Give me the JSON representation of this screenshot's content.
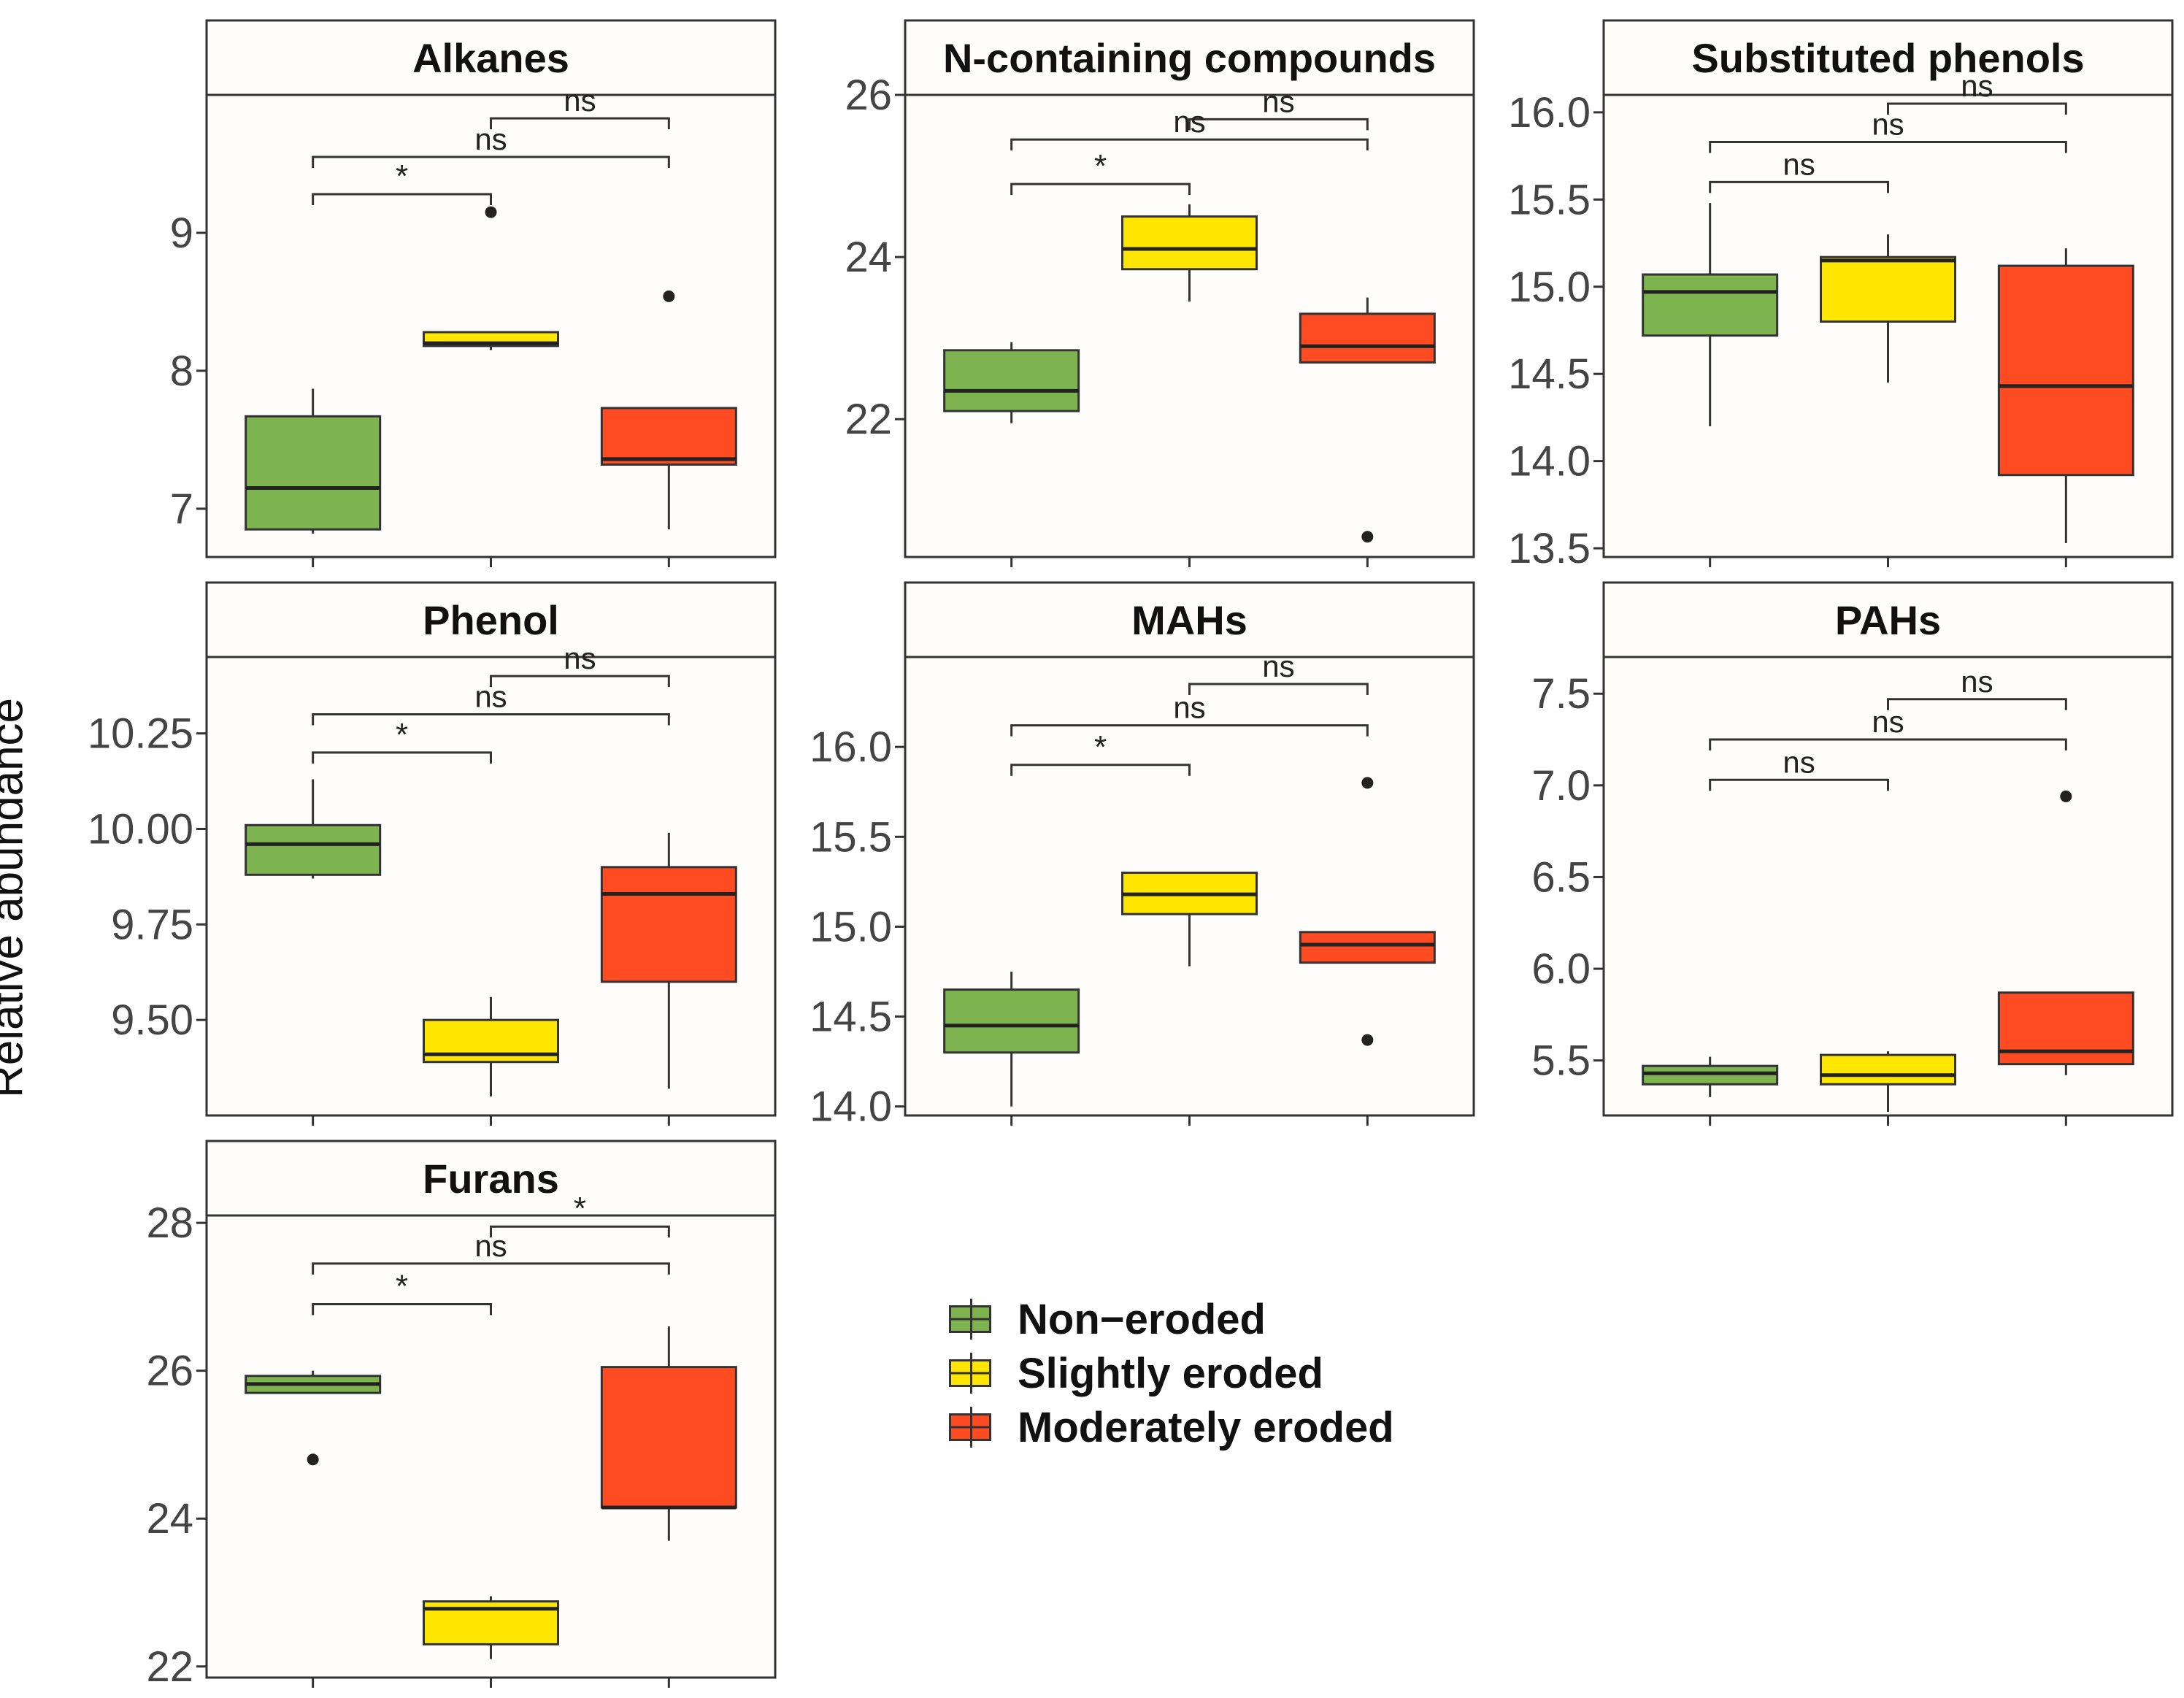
{
  "y_axis_label": "Relative abundance",
  "colors": {
    "non_eroded": "#7DB450",
    "slightly_eroded": "#FFE600",
    "moderately_eroded": "#FF4B21"
  },
  "legend": {
    "items": [
      {
        "label": "Non−eroded",
        "color": "#7DB450"
      },
      {
        "label": "Slightly eroded",
        "color": "#FFE600"
      },
      {
        "label": "Moderately eroded",
        "color": "#FF4B21"
      }
    ]
  },
  "chart_data": [
    {
      "type": "boxplot",
      "title": "Alkanes",
      "ylim": [
        6.65,
        10.0
      ],
      "yticks": [
        7,
        8,
        9
      ],
      "ytick_labels": [
        "7",
        "8",
        "9"
      ],
      "boxes": [
        {
          "group": "Non-eroded",
          "min": 6.82,
          "q1": 6.85,
          "median": 7.15,
          "q3": 7.67,
          "max": 7.87,
          "outliers": []
        },
        {
          "group": "Slightly eroded",
          "min": 8.15,
          "q1": 8.18,
          "median": 8.2,
          "q3": 8.28,
          "max": 8.28,
          "outliers": [
            9.15
          ]
        },
        {
          "group": "Moderately eroded",
          "min": 6.85,
          "q1": 7.32,
          "median": 7.36,
          "q3": 7.73,
          "max": 7.73,
          "outliers": [
            8.54
          ]
        }
      ],
      "comparisons": [
        {
          "from": 2,
          "to": 3,
          "y": 9.83,
          "label": "ns"
        },
        {
          "from": 1,
          "to": 3,
          "y": 9.55,
          "label": "ns"
        },
        {
          "from": 1,
          "to": 2,
          "y": 9.28,
          "label": "*"
        }
      ]
    },
    {
      "type": "boxplot",
      "title": "N-containing compounds",
      "ylim": [
        20.3,
        26.0
      ],
      "yticks": [
        22,
        24,
        26
      ],
      "ytick_labels": [
        "22",
        "24",
        "26"
      ],
      "boxes": [
        {
          "group": "Non-eroded",
          "min": 21.95,
          "q1": 22.1,
          "median": 22.35,
          "q3": 22.85,
          "max": 22.95,
          "outliers": []
        },
        {
          "group": "Slightly eroded",
          "min": 23.45,
          "q1": 23.85,
          "median": 24.1,
          "q3": 24.5,
          "max": 24.65,
          "outliers": []
        },
        {
          "group": "Moderately eroded",
          "min": 22.7,
          "q1": 22.7,
          "median": 22.9,
          "q3": 23.3,
          "max": 23.5,
          "outliers": [
            20.55
          ]
        }
      ],
      "comparisons": [
        {
          "from": 2,
          "to": 3,
          "y": 25.7,
          "label": "ns"
        },
        {
          "from": 1,
          "to": 3,
          "y": 25.45,
          "label": "ns"
        },
        {
          "from": 1,
          "to": 2,
          "y": 24.9,
          "label": "*"
        }
      ]
    },
    {
      "type": "boxplot",
      "title": "Substituted phenols",
      "ylim": [
        13.45,
        16.1
      ],
      "yticks": [
        13.5,
        14.0,
        14.5,
        15.0,
        15.5,
        16.0
      ],
      "ytick_labels": [
        "13.5",
        "14.0",
        "14.5",
        "15.0",
        "15.5",
        "16.0"
      ],
      "boxes": [
        {
          "group": "Non-eroded",
          "min": 14.2,
          "q1": 14.72,
          "median": 14.97,
          "q3": 15.07,
          "max": 15.48,
          "outliers": []
        },
        {
          "group": "Slightly eroded",
          "min": 14.45,
          "q1": 14.8,
          "median": 15.15,
          "q3": 15.17,
          "max": 15.3,
          "outliers": []
        },
        {
          "group": "Moderately eroded",
          "min": 13.53,
          "q1": 13.92,
          "median": 14.43,
          "q3": 15.12,
          "max": 15.22,
          "outliers": []
        }
      ],
      "comparisons": [
        {
          "from": 2,
          "to": 3,
          "y": 16.05,
          "label": "ns"
        },
        {
          "from": 1,
          "to": 3,
          "y": 15.83,
          "label": "ns"
        },
        {
          "from": 1,
          "to": 2,
          "y": 15.6,
          "label": "ns"
        }
      ]
    },
    {
      "type": "boxplot",
      "title": "Phenol",
      "ylim": [
        9.25,
        10.45
      ],
      "yticks": [
        9.5,
        9.75,
        10.0,
        10.25
      ],
      "ytick_labels": [
        "9.50",
        "9.75",
        "10.00",
        "10.25"
      ],
      "boxes": [
        {
          "group": "Non-eroded",
          "min": 9.87,
          "q1": 9.88,
          "median": 9.96,
          "q3": 10.01,
          "max": 10.13,
          "outliers": []
        },
        {
          "group": "Slightly eroded",
          "min": 9.3,
          "q1": 9.39,
          "median": 9.41,
          "q3": 9.5,
          "max": 9.56,
          "outliers": []
        },
        {
          "group": "Moderately eroded",
          "min": 9.32,
          "q1": 9.6,
          "median": 9.83,
          "q3": 9.9,
          "max": 9.99,
          "outliers": []
        }
      ],
      "comparisons": [
        {
          "from": 2,
          "to": 3,
          "y": 10.4,
          "label": "ns"
        },
        {
          "from": 1,
          "to": 3,
          "y": 10.3,
          "label": "ns"
        },
        {
          "from": 1,
          "to": 2,
          "y": 10.2,
          "label": "*"
        }
      ]
    },
    {
      "type": "boxplot",
      "title": "MAHs",
      "ylim": [
        13.95,
        16.5
      ],
      "yticks": [
        14.0,
        14.5,
        15.0,
        15.5,
        16.0
      ],
      "ytick_labels": [
        "14.0",
        "14.5",
        "15.0",
        "15.5",
        "16.0"
      ],
      "boxes": [
        {
          "group": "Non-eroded",
          "min": 14.0,
          "q1": 14.3,
          "median": 14.45,
          "q3": 14.65,
          "max": 14.75,
          "outliers": []
        },
        {
          "group": "Slightly eroded",
          "min": 14.78,
          "q1": 15.07,
          "median": 15.18,
          "q3": 15.3,
          "max": 15.3,
          "outliers": []
        },
        {
          "group": "Moderately eroded",
          "min": 14.8,
          "q1": 14.8,
          "median": 14.9,
          "q3": 14.97,
          "max": 14.97,
          "outliers": [
            15.8,
            14.37
          ]
        }
      ],
      "comparisons": [
        {
          "from": 2,
          "to": 3,
          "y": 16.35,
          "label": "ns"
        },
        {
          "from": 1,
          "to": 3,
          "y": 16.12,
          "label": "ns"
        },
        {
          "from": 1,
          "to": 2,
          "y": 15.9,
          "label": "*"
        }
      ]
    },
    {
      "type": "boxplot",
      "title": "PAHs",
      "ylim": [
        5.2,
        7.7
      ],
      "yticks": [
        5.5,
        6.0,
        6.5,
        7.0,
        7.5
      ],
      "ytick_labels": [
        "5.5",
        "6.0",
        "6.5",
        "7.0",
        "7.5"
      ],
      "boxes": [
        {
          "group": "Non-eroded",
          "min": 5.3,
          "q1": 5.37,
          "median": 5.43,
          "q3": 5.47,
          "max": 5.52,
          "outliers": []
        },
        {
          "group": "Slightly eroded",
          "min": 5.22,
          "q1": 5.37,
          "median": 5.42,
          "q3": 5.53,
          "max": 5.55,
          "outliers": []
        },
        {
          "group": "Moderately eroded",
          "min": 5.42,
          "q1": 5.48,
          "median": 5.55,
          "q3": 5.87,
          "max": 5.87,
          "outliers": [
            6.94
          ]
        }
      ],
      "comparisons": [
        {
          "from": 2,
          "to": 3,
          "y": 7.47,
          "label": "ns"
        },
        {
          "from": 1,
          "to": 3,
          "y": 7.25,
          "label": "ns"
        },
        {
          "from": 1,
          "to": 2,
          "y": 7.03,
          "label": "ns"
        }
      ]
    },
    {
      "type": "boxplot",
      "title": "Furans",
      "ylim": [
        21.85,
        28.1
      ],
      "yticks": [
        22,
        24,
        26,
        28
      ],
      "ytick_labels": [
        "22",
        "24",
        "26",
        "28"
      ],
      "boxes": [
        {
          "group": "Non-eroded",
          "min": 25.7,
          "q1": 25.7,
          "median": 25.82,
          "q3": 25.93,
          "max": 26.0,
          "outliers": [
            24.8
          ]
        },
        {
          "group": "Slightly eroded",
          "min": 22.1,
          "q1": 22.3,
          "median": 22.78,
          "q3": 22.88,
          "max": 22.95,
          "outliers": []
        },
        {
          "group": "Moderately eroded",
          "min": 23.7,
          "q1": 24.15,
          "median": 24.15,
          "q3": 26.05,
          "max": 26.6,
          "outliers": []
        }
      ],
      "comparisons": [
        {
          "from": 2,
          "to": 3,
          "y": 27.95,
          "label": "*"
        },
        {
          "from": 1,
          "to": 3,
          "y": 27.45,
          "label": "ns"
        },
        {
          "from": 1,
          "to": 2,
          "y": 26.9,
          "label": "*"
        }
      ]
    }
  ]
}
